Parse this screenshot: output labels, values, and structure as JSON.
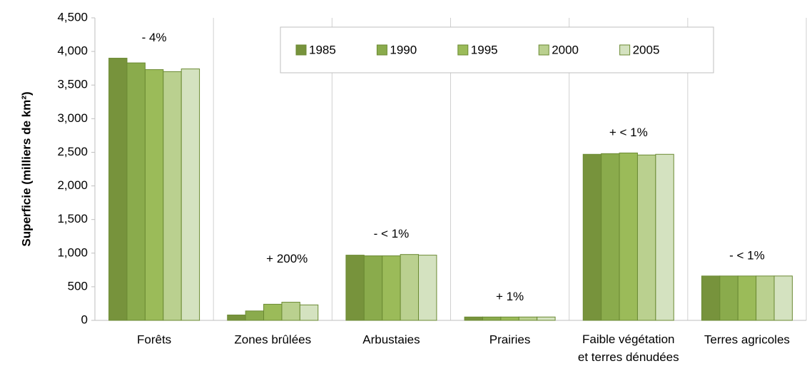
{
  "chart_data": {
    "type": "bar",
    "ylabel": "Superficie (milliers de km²)",
    "categories": [
      "Forêts",
      "Zones brûlées",
      "Arbustaies",
      "Prairies",
      "Faible végétation et terres dénudées",
      "Terres agricoles"
    ],
    "series": [
      {
        "name": "1985",
        "color": "#77933c",
        "values": [
          3900,
          80,
          970,
          50,
          2470,
          660
        ]
      },
      {
        "name": "1990",
        "color": "#8aab4c",
        "values": [
          3830,
          140,
          960,
          50,
          2480,
          660
        ]
      },
      {
        "name": "1995",
        "color": "#9bbb59",
        "values": [
          3730,
          240,
          960,
          50,
          2490,
          660
        ]
      },
      {
        "name": "2000",
        "color": "#bad08f",
        "values": [
          3700,
          270,
          980,
          50,
          2460,
          660
        ]
      },
      {
        "name": "2005",
        "color": "#d4e2c0",
        "values": [
          3740,
          230,
          970,
          50,
          2470,
          660
        ]
      }
    ],
    "annotations": [
      "- 4%",
      "+ 200%",
      "- < 1%",
      "+ 1%",
      "+ < 1%",
      "- < 1%"
    ],
    "ylim": [
      0,
      4500
    ],
    "yticks": [
      0,
      500,
      {
        "value": 1000,
        "label": "1,000"
      },
      {
        "value": 1500,
        "label": "1,500"
      },
      {
        "value": 2000,
        "label": "2,000"
      },
      {
        "value": 2500,
        "label": "2,500"
      },
      {
        "value": 3000,
        "label": "3,000"
      },
      {
        "value": 3500,
        "label": "3,500"
      },
      {
        "value": 4000,
        "label": "4,000"
      },
      {
        "value": 4500,
        "label": "4,500"
      }
    ],
    "legend": "top-right"
  }
}
